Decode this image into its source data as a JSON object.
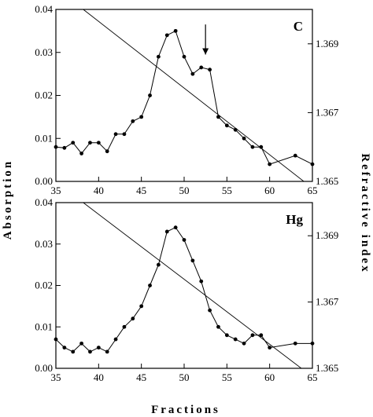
{
  "figure": {
    "xlabel": "Fractions",
    "ylabel_left": "Absorption",
    "ylabel_right": "Refractive index"
  },
  "chart_data": [
    {
      "type": "line",
      "label": "C",
      "xlim": [
        35,
        65
      ],
      "ylim": [
        0,
        0.04
      ],
      "ylim_right": [
        1.365,
        1.37
      ],
      "x_ticks": [
        "35",
        "40",
        "45",
        "50",
        "55",
        "60",
        "65"
      ],
      "y_ticks": [
        "0.00",
        "0.01",
        "0.02",
        "0.03",
        "0.04"
      ],
      "y_ticks_right": [
        "1.365",
        "1.367",
        "1.369"
      ],
      "grid": false,
      "series": [
        {
          "axis": "left",
          "markers": true,
          "x": [
            35,
            36,
            37,
            38,
            39,
            40,
            41,
            42,
            43,
            44,
            45,
            46,
            47,
            48,
            49,
            50,
            51,
            52,
            53,
            54,
            55,
            56,
            57,
            58,
            59,
            60,
            63,
            65
          ],
          "y": [
            0.008,
            0.0078,
            0.009,
            0.0065,
            0.009,
            0.009,
            0.007,
            0.011,
            0.011,
            0.014,
            0.015,
            0.02,
            0.029,
            0.034,
            0.035,
            0.029,
            0.025,
            0.0265,
            0.026,
            0.015,
            0.013,
            0.012,
            0.01,
            0.008,
            0.008,
            0.004,
            0.006,
            0.004
          ]
        },
        {
          "axis": "right",
          "markers": false,
          "x": [
            38.2,
            64
          ],
          "y": [
            1.37,
            1.365
          ]
        }
      ],
      "annotations": [
        {
          "type": "arrow",
          "x": 52.5,
          "y_from": 0.0365,
          "y_to": 0.0295
        }
      ]
    },
    {
      "type": "line",
      "label": "Hg",
      "xlim": [
        35,
        65
      ],
      "ylim": [
        0,
        0.04
      ],
      "ylim_right": [
        1.365,
        1.37
      ],
      "x_ticks": [
        "35",
        "40",
        "45",
        "50",
        "55",
        "60",
        "65"
      ],
      "y_ticks": [
        "0.00",
        "0.01",
        "0.02",
        "0.03",
        "0.04"
      ],
      "y_ticks_right": [
        "1.365",
        "1.367",
        "1.369"
      ],
      "grid": false,
      "series": [
        {
          "axis": "left",
          "markers": true,
          "x": [
            35,
            36,
            37,
            38,
            39,
            40,
            41,
            42,
            43,
            44,
            45,
            46,
            47,
            48,
            49,
            50,
            51,
            52,
            53,
            54,
            55,
            56,
            57,
            58,
            59,
            60,
            63,
            65
          ],
          "y": [
            0.007,
            0.005,
            0.004,
            0.006,
            0.004,
            0.005,
            0.004,
            0.007,
            0.01,
            0.012,
            0.015,
            0.02,
            0.025,
            0.033,
            0.034,
            0.031,
            0.026,
            0.021,
            0.014,
            0.01,
            0.008,
            0.007,
            0.006,
            0.008,
            0.008,
            0.005,
            0.006,
            0.006
          ]
        },
        {
          "axis": "right",
          "markers": false,
          "x": [
            38.2,
            63.7
          ],
          "y": [
            1.37,
            1.365
          ]
        }
      ]
    }
  ]
}
